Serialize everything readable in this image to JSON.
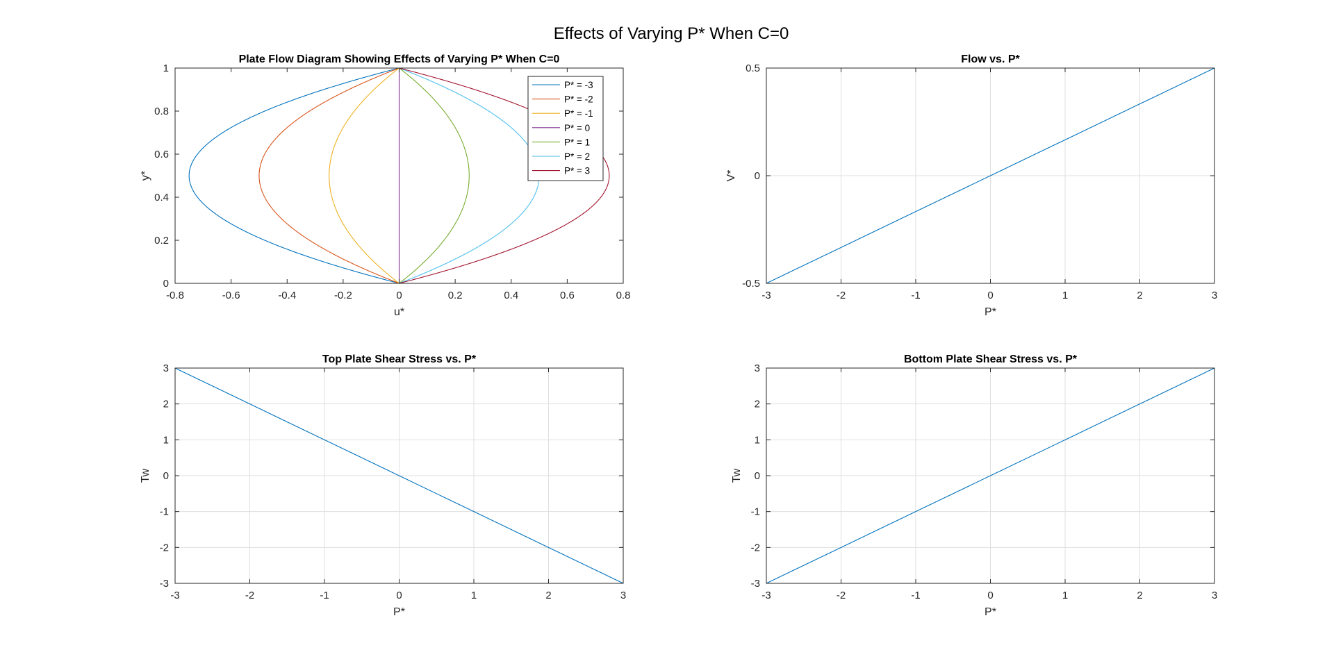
{
  "figure": {
    "suptitle": "Effects of Varying P* When C=0"
  },
  "chart_data": [
    {
      "type": "line",
      "title": "Plate Flow Diagram Showing Effects of Varying P* When C=0",
      "xlabel": "u*",
      "ylabel": "y*",
      "xlim": [
        -0.8,
        0.8
      ],
      "ylim": [
        0,
        1
      ],
      "xticks": [
        "-0.8",
        "-0.6",
        "-0.4",
        "-0.2",
        "0",
        "0.2",
        "0.4",
        "0.6",
        "0.8"
      ],
      "yticks": [
        "0",
        "0.2",
        "0.4",
        "0.6",
        "0.8",
        "1"
      ],
      "grid": false,
      "legend": "top-right",
      "curve": "u* = P* · y* · (1 − y*)",
      "y_samples": [
        0,
        0.05,
        0.1,
        0.15,
        0.2,
        0.25,
        0.3,
        0.35,
        0.4,
        0.45,
        0.5,
        0.55,
        0.6,
        0.65,
        0.7,
        0.75,
        0.8,
        0.85,
        0.9,
        0.95,
        1
      ],
      "series": [
        {
          "name": "P* = -3",
          "pstar": -3,
          "color": "#0072BD"
        },
        {
          "name": "P* = -2",
          "pstar": -2,
          "color": "#D95319"
        },
        {
          "name": "P* = -1",
          "pstar": -1,
          "color": "#EDB120"
        },
        {
          "name": "P* = 0",
          "pstar": 0,
          "color": "#7E2F8E"
        },
        {
          "name": "P* = 1",
          "pstar": 1,
          "color": "#77AC30"
        },
        {
          "name": "P* = 2",
          "pstar": 2,
          "color": "#4DBEEE"
        },
        {
          "name": "P* = 3",
          "pstar": 3,
          "color": "#A2142F"
        }
      ]
    },
    {
      "type": "line",
      "title": "Flow vs. P*",
      "xlabel": "P*",
      "ylabel": "V*",
      "xlim": [
        -3,
        3
      ],
      "ylim": [
        -0.5,
        0.5
      ],
      "xticks": [
        "-3",
        "-2",
        "-1",
        "0",
        "1",
        "2",
        "3"
      ],
      "yticks": [
        "-0.5",
        "0",
        "0.5"
      ],
      "grid": true,
      "series": [
        {
          "x": [
            -3,
            -2,
            -1,
            0,
            1,
            2,
            3
          ],
          "values": [
            -0.5,
            -0.3333,
            -0.1667,
            0,
            0.1667,
            0.3333,
            0.5
          ],
          "color": "#0072BD"
        }
      ]
    },
    {
      "type": "line",
      "title": "Top Plate Shear Stress vs. P*",
      "xlabel": "P*",
      "ylabel": "Tw",
      "xlim": [
        -3,
        3
      ],
      "ylim": [
        -3,
        3
      ],
      "xticks": [
        "-3",
        "-2",
        "-1",
        "0",
        "1",
        "2",
        "3"
      ],
      "yticks": [
        "-3",
        "-2",
        "-1",
        "0",
        "1",
        "2",
        "3"
      ],
      "grid": true,
      "series": [
        {
          "x": [
            -3,
            -2,
            -1,
            0,
            1,
            2,
            3
          ],
          "values": [
            3,
            2,
            1,
            0,
            -1,
            -2,
            -3
          ],
          "color": "#0072BD"
        }
      ]
    },
    {
      "type": "line",
      "title": "Bottom Plate Shear Stress vs. P*",
      "xlabel": "P*",
      "ylabel": "Tw",
      "xlim": [
        -3,
        3
      ],
      "ylim": [
        -3,
        3
      ],
      "xticks": [
        "-3",
        "-2",
        "-1",
        "0",
        "1",
        "2",
        "3"
      ],
      "yticks": [
        "-3",
        "-2",
        "-1",
        "0",
        "1",
        "2",
        "3"
      ],
      "grid": true,
      "series": [
        {
          "x": [
            -3,
            -2,
            -1,
            0,
            1,
            2,
            3
          ],
          "values": [
            -3,
            -2,
            -1,
            0,
            1,
            2,
            3
          ],
          "color": "#0072BD"
        }
      ]
    }
  ]
}
